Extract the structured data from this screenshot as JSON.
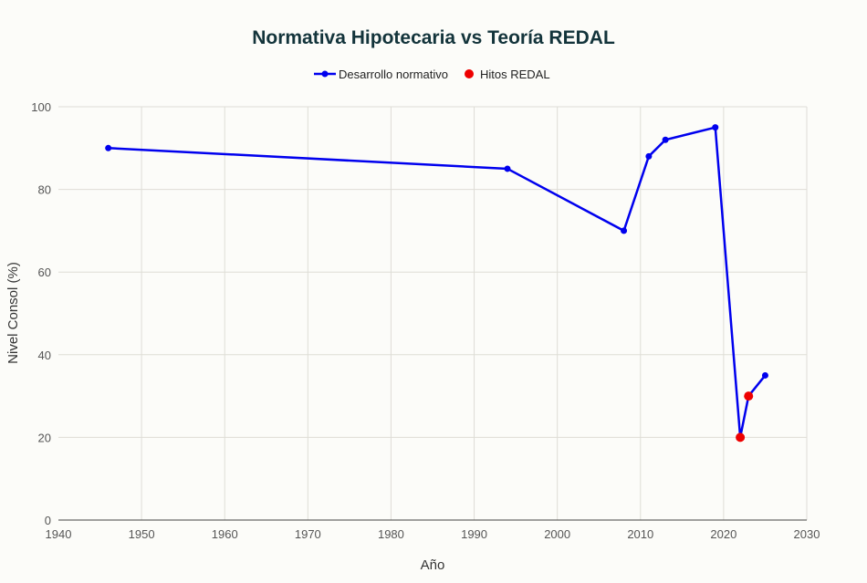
{
  "chart_data": {
    "type": "line",
    "title": "Normativa Hipotecaria vs Teoría REDAL",
    "xlabel": "Año",
    "ylabel": "Nivel Consol (%)",
    "xlim": [
      1940,
      2030
    ],
    "ylim": [
      0,
      100
    ],
    "xticks": [
      1940,
      1950,
      1960,
      1970,
      1980,
      1990,
      2000,
      2010,
      2020,
      2030
    ],
    "yticks": [
      0,
      20,
      40,
      60,
      80,
      100
    ],
    "grid": true,
    "legend_position": "top-center",
    "series": [
      {
        "name": "Desarrollo normativo",
        "mode": "lines+markers",
        "color": "#0000ee",
        "x": [
          1946,
          1994,
          2008,
          2011,
          2013,
          2019,
          2022,
          2023,
          2025
        ],
        "y": [
          90,
          85,
          70,
          88,
          92,
          95,
          20,
          30,
          35
        ]
      },
      {
        "name": "Hitos REDAL",
        "mode": "markers",
        "color": "#ee0000",
        "x": [
          2022,
          2023
        ],
        "y": [
          20,
          30
        ]
      }
    ]
  }
}
